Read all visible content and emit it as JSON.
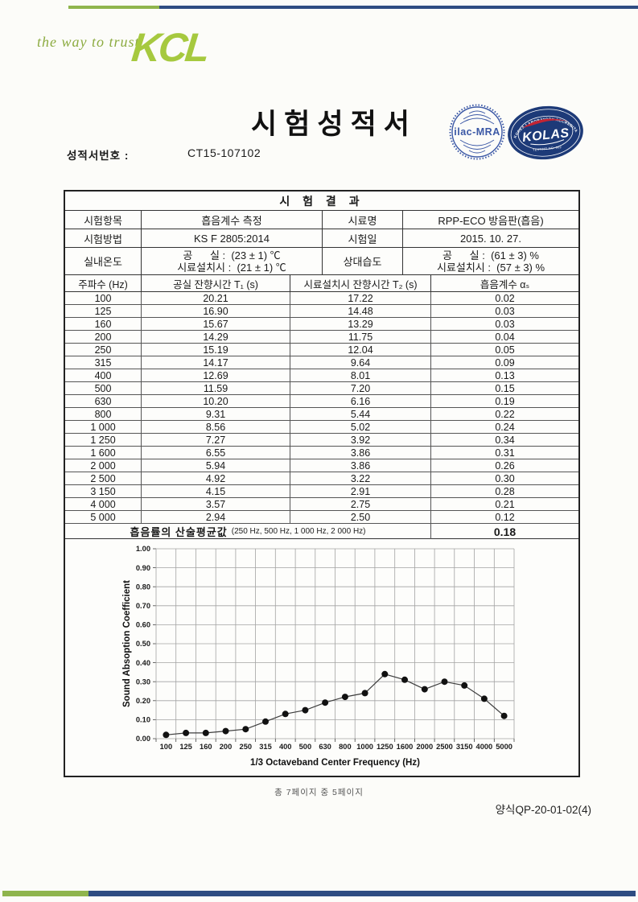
{
  "brand": {
    "tagline": "the way to trust",
    "logo": "KCL"
  },
  "header": {
    "title": "시험성적서",
    "report_no_label": "성적서번호 :",
    "report_no": "CT15-107102"
  },
  "stamps": {
    "ilac_text": "ilac-MRA",
    "kolas_ring": "KOREA LABORATORY ACCREDITATION SCHEME",
    "kolas_name": "KOLAS",
    "kolas_sub": "TESTING NO. 062"
  },
  "results": {
    "section_title": "시 험 결 과",
    "info": [
      {
        "label1": "시험항목",
        "value1": "흡음계수 측정",
        "label2": "시료명",
        "value2": "RPP-ECO 방음판(흡음)"
      },
      {
        "label1": "시험방법",
        "value1": "KS F 2805:2014",
        "label2": "시험일",
        "value2": "2015. 10. 27."
      },
      {
        "label1": "실내온도",
        "value1a": "공      실 :  (23 ± 1) ℃",
        "value1b": "시료설치시 :  (21 ± 1) ℃",
        "label2": "상대습도",
        "value2a": "공      실 :  (61 ± 3) %",
        "value2b": "시료설치시 :  (57 ± 3) %"
      }
    ],
    "col_headers": [
      "주파수 (Hz)",
      "공실 잔향시간 T₁ (s)",
      "시료설치시 잔향시간 T₂ (s)",
      "흡음계수 αₛ"
    ],
    "rows": [
      [
        "100",
        "20.21",
        "17.22",
        "0.02"
      ],
      [
        "125",
        "16.90",
        "14.48",
        "0.03"
      ],
      [
        "160",
        "15.67",
        "13.29",
        "0.03"
      ],
      [
        "200",
        "14.29",
        "11.75",
        "0.04"
      ],
      [
        "250",
        "15.19",
        "12.04",
        "0.05"
      ],
      [
        "315",
        "14.17",
        "9.64",
        "0.09"
      ],
      [
        "400",
        "12.69",
        "8.01",
        "0.13"
      ],
      [
        "500",
        "11.59",
        "7.20",
        "0.15"
      ],
      [
        "630",
        "10.20",
        "6.16",
        "0.19"
      ],
      [
        "800",
        "9.31",
        "5.44",
        "0.22"
      ],
      [
        "1 000",
        "8.56",
        "5.02",
        "0.24"
      ],
      [
        "1 250",
        "7.27",
        "3.92",
        "0.34"
      ],
      [
        "1 600",
        "6.55",
        "3.86",
        "0.31"
      ],
      [
        "2 000",
        "5.94",
        "3.86",
        "0.26"
      ],
      [
        "2 500",
        "4.92",
        "3.22",
        "0.30"
      ],
      [
        "3 150",
        "4.15",
        "2.91",
        "0.28"
      ],
      [
        "4 000",
        "3.57",
        "2.75",
        "0.21"
      ],
      [
        "5 000",
        "2.94",
        "2.50",
        "0.12"
      ]
    ],
    "summary": {
      "label": "흡음률의 산술평균값",
      "note": "(250 Hz, 500 Hz, 1 000 Hz, 2 000 Hz)",
      "value": "0.18"
    }
  },
  "chart_data": {
    "type": "line",
    "categories": [
      100,
      125,
      160,
      200,
      250,
      315,
      400,
      500,
      630,
      800,
      1000,
      1250,
      1600,
      2000,
      2500,
      3150,
      4000,
      5000
    ],
    "values": [
      0.02,
      0.03,
      0.03,
      0.04,
      0.05,
      0.09,
      0.13,
      0.15,
      0.19,
      0.22,
      0.24,
      0.34,
      0.31,
      0.26,
      0.3,
      0.28,
      0.21,
      0.12
    ],
    "title": "",
    "xlabel": "1/3 Octaveband Center Frequency (Hz)",
    "ylabel": "Sound Absoption Coefficient",
    "ylim": [
      0,
      1
    ],
    "ytick_step": 0.1,
    "grid": true,
    "legend": "none",
    "marker": "filled-circle"
  },
  "footer": {
    "page_info": "총 7페이지 중 5페이지",
    "form_no": "양식QP-20-01-02(4)"
  },
  "colors": {
    "bar_green": "#8fb54d",
    "bar_navy": "#2e4c82",
    "logo_green": "#a6c93f",
    "tagline_green": "#8cab40",
    "stamp_blue": "#3b58a6",
    "stamp_navy": "#1d3a78",
    "stamp_red": "#c22433",
    "grid_gray": "#a3a3a3",
    "line_dark": "#3d3d3d",
    "marker_black": "#111111"
  }
}
